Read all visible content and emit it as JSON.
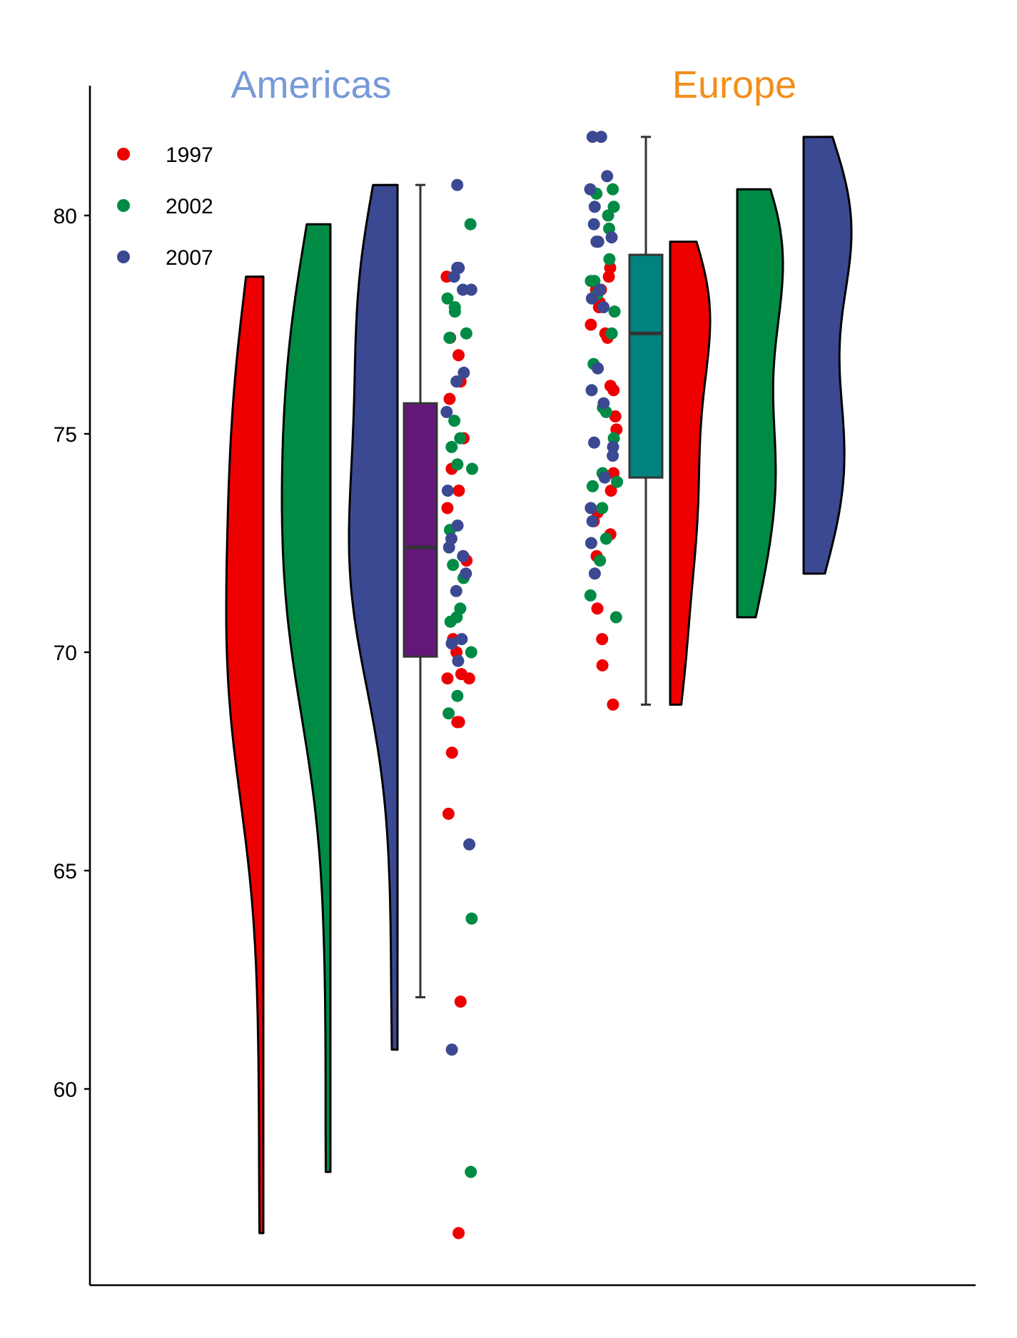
{
  "chart_data": {
    "type": "raincloud",
    "title": "",
    "xlabel": "",
    "ylabel": "",
    "ylim": [
      55.8,
      83.0
    ],
    "yticks": [
      60,
      65,
      70,
      75,
      80
    ],
    "grid": false,
    "legend": {
      "placement": "top-left",
      "entries": [
        {
          "label": "1997",
          "color": "#EE0000"
        },
        {
          "label": "2002",
          "color": "#008B45"
        },
        {
          "label": "2007",
          "color": "#3B4992"
        }
      ]
    },
    "groups": [
      {
        "name": "Americas",
        "title_color": "#7799D6",
        "box": {
          "color": "#631879",
          "min": 62.1,
          "q1": 69.9,
          "median": 72.4,
          "q3": 75.7,
          "max": 80.7
        },
        "series": [
          {
            "year": "1997",
            "color": "#EE0000",
            "min": 56.7,
            "max": 78.6,
            "values": [
              56.7,
              62.0,
              66.3,
              67.7,
              68.4,
              68.4,
              69.4,
              69.4,
              69.5,
              70.0,
              70.3,
              72.1,
              72.2,
              73.3,
              73.7,
              74.2,
              74.9,
              75.8,
              76.2,
              76.8,
              77.2,
              78.6
            ]
          },
          {
            "year": "2002",
            "color": "#008B45",
            "min": 58.1,
            "max": 79.8,
            "values": [
              58.1,
              63.9,
              68.6,
              69.0,
              70.0,
              70.7,
              70.8,
              71.0,
              71.7,
              72.0,
              72.8,
              74.2,
              74.3,
              74.7,
              74.9,
              75.3,
              77.2,
              77.3,
              77.8,
              77.9,
              78.1,
              79.8
            ]
          },
          {
            "year": "2007",
            "color": "#3B4992",
            "min": 60.9,
            "max": 80.7,
            "values": [
              60.9,
              65.6,
              69.8,
              70.2,
              70.3,
              71.4,
              71.8,
              72.2,
              72.4,
              72.6,
              72.9,
              73.7,
              75.5,
              76.2,
              76.4,
              78.3,
              78.3,
              78.6,
              78.8,
              78.8,
              80.7
            ]
          }
        ]
      },
      {
        "name": "Europe",
        "title_color": "#F28E1C",
        "box": {
          "color": "#008280",
          "min": 68.8,
          "q1": 74.0,
          "median": 77.3,
          "q3": 79.1,
          "max": 81.8
        },
        "series": [
          {
            "year": "1997",
            "color": "#EE0000",
            "min": 68.8,
            "max": 79.4,
            "values": [
              68.8,
              69.7,
              70.3,
              71.0,
              72.2,
              72.7,
              73.0,
              73.2,
              73.7,
              74.1,
              75.1,
              75.4,
              76.0,
              76.1,
              77.2,
              77.3,
              77.5,
              77.9,
              78.0,
              78.3,
              78.3,
              78.6,
              78.8,
              79.4
            ]
          },
          {
            "year": "2002",
            "color": "#008B45",
            "min": 70.8,
            "max": 80.6,
            "values": [
              70.8,
              71.3,
              72.1,
              72.6,
              73.3,
              73.8,
              73.9,
              74.1,
              74.9,
              75.5,
              75.6,
              76.6,
              77.3,
              77.8,
              78.2,
              78.5,
              78.5,
              79.0,
              79.7,
              80.0,
              80.2,
              80.5,
              80.6
            ]
          },
          {
            "year": "2007",
            "color": "#3B4992",
            "min": 71.8,
            "max": 81.8,
            "values": [
              71.8,
              72.5,
              73.0,
              73.3,
              74.0,
              74.5,
              74.7,
              74.8,
              75.7,
              76.0,
              76.5,
              77.9,
              78.1,
              78.3,
              79.4,
              79.4,
              79.5,
              79.8,
              80.2,
              80.6,
              80.9,
              81.8,
              81.8
            ]
          }
        ]
      }
    ]
  }
}
